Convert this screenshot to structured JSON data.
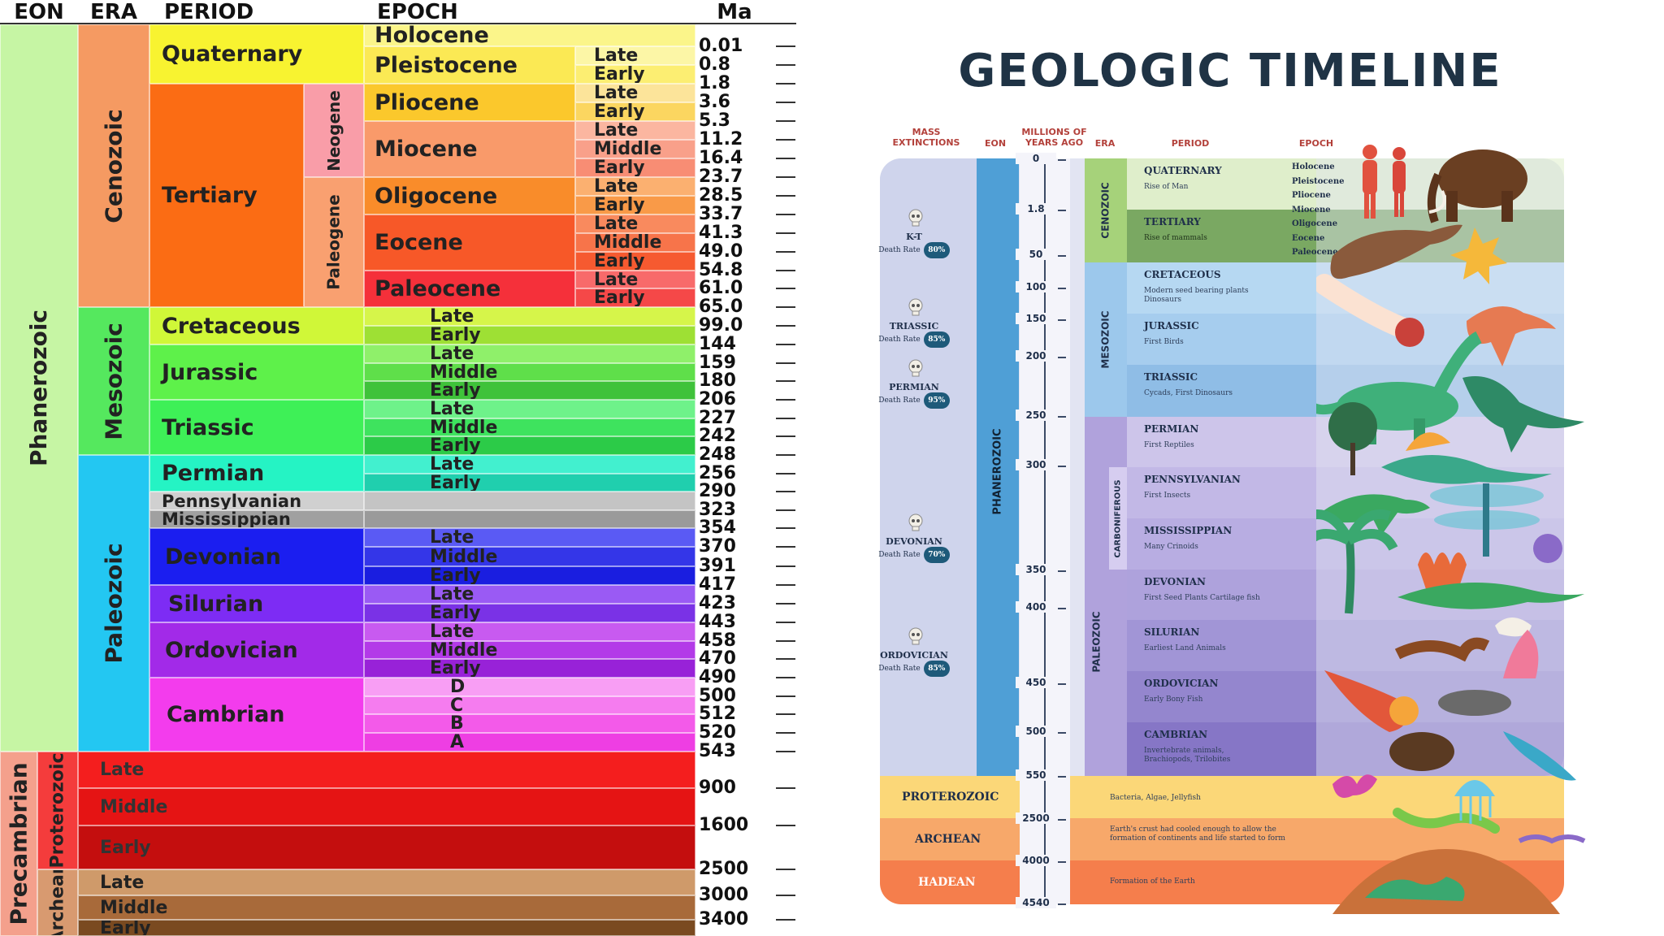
{
  "left_chart": {
    "headers": {
      "eon": "EON",
      "era": "ERA",
      "period": "PERIOD",
      "epoch": "EPOCH",
      "ma": "Ma"
    },
    "eons": [
      {
        "label": "Phanerozoic"
      },
      {
        "label": "Precambrian"
      }
    ],
    "eras": [
      {
        "label": "Cenozoic"
      },
      {
        "label": "Mesozoic"
      },
      {
        "label": "Paleozoic"
      },
      {
        "label": "Proterozoic"
      },
      {
        "label": "Archean"
      }
    ],
    "periods": {
      "quaternary": "Quaternary",
      "tertiary": "Tertiary",
      "neogene": "Neogene",
      "paleogene": "Paleogene",
      "cretaceous": "Cretaceous",
      "jurassic": "Jurassic",
      "triassic": "Triassic",
      "permian": "Permian",
      "pennsylvanian": "Pennsylvanian",
      "mississippian": "Mississippian",
      "devonian": "Devonian",
      "silurian": "Silurian",
      "ordovician": "Ordovician",
      "cambrian": "Cambrian"
    },
    "epochs": {
      "holocene": "Holocene",
      "pleistocene": "Pleistocene",
      "pliocene": "Pliocene",
      "miocene": "Miocene",
      "oligocene": "Oligocene",
      "eocene": "Eocene",
      "paleocene": "Paleocene"
    },
    "subdivisions": {
      "late": "Late",
      "middle": "Middle",
      "early": "Early",
      "d": "D",
      "c": "C",
      "b": "B",
      "a": "A"
    },
    "ma_values": [
      "0.01",
      "0.8",
      "1.8",
      "3.6",
      "5.3",
      "11.2",
      "16.4",
      "23.7",
      "28.5",
      "33.7",
      "41.3",
      "49.0",
      "54.8",
      "61.0",
      "65.0",
      "99.0",
      "144",
      "159",
      "180",
      "206",
      "227",
      "242",
      "248",
      "256",
      "290",
      "323",
      "354",
      "370",
      "391",
      "417",
      "423",
      "443",
      "458",
      "470",
      "490",
      "500",
      "512",
      "520",
      "543",
      "900",
      "1600",
      "2500",
      "3000",
      "3400"
    ]
  },
  "right_chart": {
    "title": "GEOLOGIC TIMELINE",
    "columns": {
      "mass": "MASS EXTINCTIONS",
      "eon": "EON",
      "mya": "MILLIONS OF YEARS AGO",
      "era": "ERA",
      "period": "PERIOD",
      "epoch": "EPOCH"
    },
    "scale": [
      "0",
      "1.8",
      "50",
      "100",
      "150",
      "200",
      "250",
      "300",
      "350",
      "400",
      "450",
      "500",
      "550",
      "2500",
      "4000",
      "4540"
    ],
    "eon_label": "PHANEROZOIC",
    "eras": {
      "cenozoic": "CENOZOIC",
      "mesozoic": "MESOZOIC",
      "paleozoic": "PALEOZOIC",
      "carboniferous": "CARBONIFEROUS"
    },
    "periods": [
      {
        "name": "QUATERNARY",
        "desc": "Rise of Man"
      },
      {
        "name": "TERTIARY",
        "desc": "Rise of mammals"
      },
      {
        "name": "CRETACEOUS",
        "desc": "Modern seed bearing plants Dinosaurs"
      },
      {
        "name": "JURASSIC",
        "desc": "First Birds"
      },
      {
        "name": "TRIASSIC",
        "desc": "Cycads, First Dinosaurs"
      },
      {
        "name": "PERMIAN",
        "desc": "First Reptiles"
      },
      {
        "name": "PENNSYLVANIAN",
        "desc": "First Insects"
      },
      {
        "name": "MISSISSIPPIAN",
        "desc": "Many Crinoids"
      },
      {
        "name": "DEVONIAN",
        "desc": "First Seed Plants Cartilage fish"
      },
      {
        "name": "SILURIAN",
        "desc": "Earliest Land Animals"
      },
      {
        "name": "ORDOVICIAN",
        "desc": "Early Bony Fish"
      },
      {
        "name": "CAMBRIAN",
        "desc": "Invertebrate animals, Brachiopods, Trilobites"
      }
    ],
    "epochs": [
      "Holocene",
      "Pleistocene",
      "Pliocene",
      "Miocene",
      "Oligocene",
      "Eocene",
      "Paleocene"
    ],
    "extinctions": [
      {
        "name": "K-T",
        "rate": "Death Rate",
        "pct": "80%"
      },
      {
        "name": "TRIASSIC",
        "rate": "Death Rate",
        "pct": "85%"
      },
      {
        "name": "PERMIAN",
        "rate": "Death Rate",
        "pct": "95%"
      },
      {
        "name": "DEVONIAN",
        "rate": "Death Rate",
        "pct": "70%"
      },
      {
        "name": "ORDOVICIAN",
        "rate": "Death Rate",
        "pct": "85%"
      }
    ],
    "precambrian": [
      {
        "eon": "PROTEROZOIC",
        "desc": "Bacteria, Algae, Jellyfish"
      },
      {
        "eon": "ARCHEAN",
        "desc": "Earth's crust had cooled enough to allow the formation of continents and life started to form"
      },
      {
        "eon": "HADEAN",
        "desc": "Formation of the Earth"
      }
    ],
    "colors": {
      "title": "#1f3345",
      "colhead": "#b3413b",
      "eon_bar": "#4f9fd6"
    }
  }
}
